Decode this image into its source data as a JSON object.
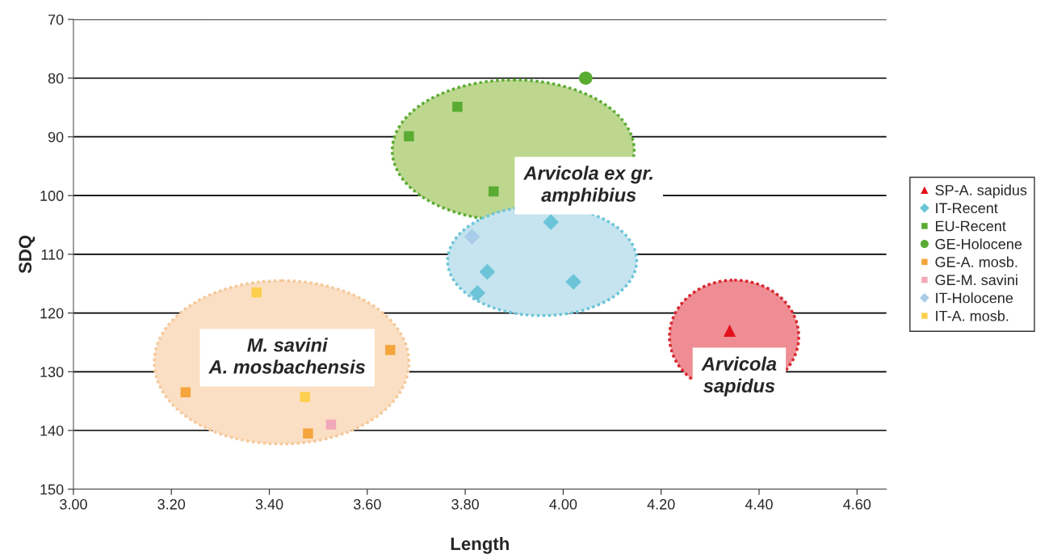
{
  "chart_data": {
    "type": "scatter",
    "xlabel": "Length",
    "ylabel": "SDQ",
    "xlim": [
      3.0,
      4.66
    ],
    "xticks": [
      {
        "value": 3.0,
        "label": "3.00"
      },
      {
        "value": 3.2,
        "label": "3.20"
      },
      {
        "value": 3.4,
        "label": "3.40"
      },
      {
        "value": 3.6,
        "label": "3.60"
      },
      {
        "value": 3.8,
        "label": "3.80"
      },
      {
        "value": 4.0,
        "label": "4.00"
      },
      {
        "value": 4.2,
        "label": "4.20"
      },
      {
        "value": 4.4,
        "label": "4.40"
      },
      {
        "value": 4.6,
        "label": "4.60"
      }
    ],
    "ylim": [
      150,
      70
    ],
    "yticks": [
      70,
      80,
      90,
      100,
      110,
      120,
      130,
      140,
      150
    ],
    "grid": "y",
    "legend": "right",
    "series": [
      {
        "name": "SP-A. sapidus",
        "color": "#e3111b",
        "marker": "triangle",
        "x": [
          4.34
        ],
        "values": [
          123
        ]
      },
      {
        "name": "IT-Recent",
        "color": "#6cc4d8",
        "marker": "diamond",
        "x": [
          3.845,
          3.825,
          4.021,
          3.975
        ],
        "values": [
          113.0,
          116.6,
          114.7,
          104.5
        ]
      },
      {
        "name": "EU-Recent",
        "color": "#5aab32",
        "marker": "square",
        "x": [
          3.685,
          3.784,
          3.858
        ],
        "values": [
          89.9,
          84.9,
          99.3
        ]
      },
      {
        "name": "GE-Holocene",
        "color": "#5aab32",
        "marker": "circle",
        "x": [
          4.046
        ],
        "values": [
          80.0
        ]
      },
      {
        "name": "GE-A. mosb.",
        "color": "#f4a53c",
        "marker": "square",
        "x": [
          3.229,
          3.647,
          3.479
        ],
        "values": [
          133.5,
          126.3,
          140.5
        ]
      },
      {
        "name": "GE-M. savini",
        "color": "#f2a7bb",
        "marker": "square",
        "x": [
          3.526
        ],
        "values": [
          139.0
        ]
      },
      {
        "name": "IT-Holocene",
        "color": "#a9cce8",
        "marker": "diamond",
        "x": [
          3.814
        ],
        "values": [
          107.0
        ]
      },
      {
        "name": "IT-A. mosb.",
        "color": "#fcd04e",
        "marker": "square",
        "x": [
          3.374,
          3.473
        ],
        "values": [
          116.5,
          134.3
        ]
      }
    ],
    "annotations": [
      "M. savini\nA. mosbachensis",
      "Arvicola ex gr.\namphibius",
      "Arvicola\nsapidus"
    ]
  }
}
